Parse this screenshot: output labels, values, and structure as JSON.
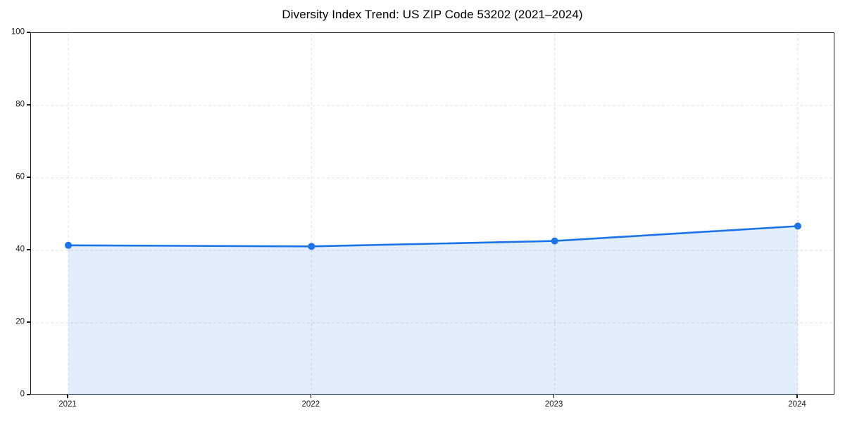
{
  "figure": {
    "background_color": "#ffffff",
    "spine_color": "#1a1a1a",
    "gridline_color": "#e0e0e0",
    "tick_label_color": "#1a1a1a"
  },
  "chart_data": {
    "type": "area",
    "title": "Diversity Index Trend: US ZIP Code 53202 (2021–2024)",
    "x": [
      2021,
      2022,
      2023,
      2024
    ],
    "series": [
      {
        "name": "Diversity Index",
        "values": [
          41.4,
          41.1,
          42.6,
          46.7
        ]
      }
    ],
    "xlabel": "",
    "ylabel": "",
    "ylim": [
      0,
      100
    ],
    "yticks": [
      0,
      20,
      40,
      60,
      80,
      100
    ],
    "xtick_labels": [
      "2021",
      "2022",
      "2023",
      "2024"
    ],
    "grid": "dashed-both-axes",
    "legend_position": "none",
    "line_color": "#1a73e8",
    "marker_color": "#1a73e8",
    "fill_color": "rgba(26,115,232,0.12)",
    "marker": "circle"
  }
}
